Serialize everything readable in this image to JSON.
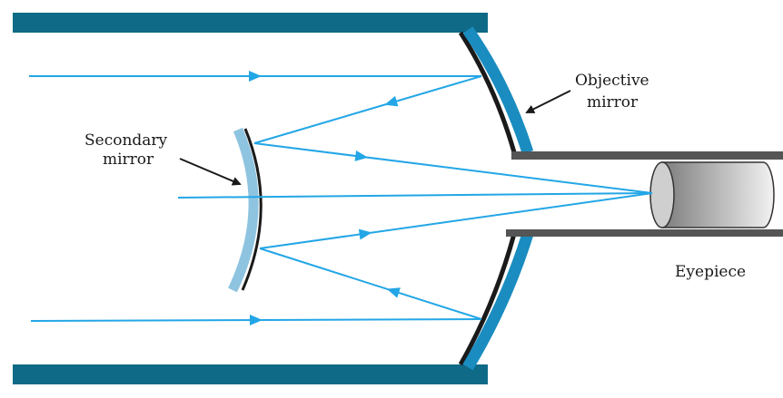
{
  "labels": {
    "objective_line1": "Objective",
    "objective_line2": "mirror",
    "secondary_line1": "Secondary",
    "secondary_line2": "mirror",
    "eyepiece": "Eyepiece"
  },
  "colors": {
    "tube": "#0e6a86",
    "objective_mirror": "#1a8cc0",
    "mirror_back": "#1a1a1a",
    "secondary_mirror": "#8fc4e0",
    "ray": "#23a6e6",
    "eyepiece_tube": "#555555",
    "pointer": "#1a1a1a"
  }
}
